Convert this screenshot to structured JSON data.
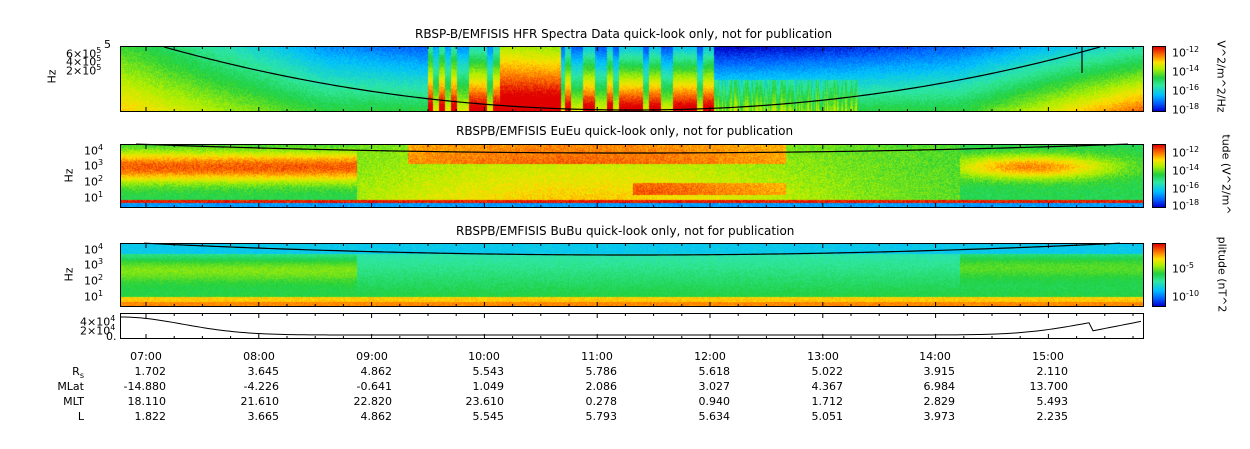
{
  "panels": [
    {
      "id": "hfr",
      "title": "RBSP-B/EMFISIS  HFR Spectra Data quick-look only, not for publication",
      "ylabel": "Hz",
      "yticks": [
        [
          "6×10",
          "5"
        ],
        [
          "4×10",
          "5"
        ],
        [
          "2×10",
          "5"
        ]
      ],
      "top_tick": "5",
      "cblabel": "V^2/m^2/Hz",
      "cbticks": [
        [
          "10",
          "-12"
        ],
        [
          "10",
          "-14"
        ],
        [
          "10",
          "-16"
        ],
        [
          "10",
          "-18"
        ]
      ]
    },
    {
      "id": "eueu",
      "title": "RBSPB/EMFISIS  EuEu quick-look only, not for publication",
      "ylabel": "Hz",
      "yticks": [
        [
          "10",
          "4"
        ],
        [
          "10",
          "3"
        ],
        [
          "10",
          "2"
        ],
        [
          "10",
          "1"
        ]
      ],
      "top_tick": "",
      "cblabel": "tude (V^2/m^",
      "cbticks": [
        [
          "10",
          "-12"
        ],
        [
          "10",
          "-14"
        ],
        [
          "10",
          "-16"
        ],
        [
          "10",
          "-18"
        ]
      ]
    },
    {
      "id": "bubu",
      "title": "RBSPB/EMFISIS  BuBu quick-look only, not for publication",
      "ylabel": "Hz",
      "yticks": [
        [
          "10",
          "4"
        ],
        [
          "10",
          "3"
        ],
        [
          "10",
          "2"
        ],
        [
          "10",
          "1"
        ]
      ],
      "top_tick": "",
      "cblabel": "plitude (nT^2",
      "cbticks": [
        [
          "10",
          "-5"
        ],
        [
          "10",
          "-10"
        ]
      ]
    }
  ],
  "line_panel": {
    "yticks": [
      [
        "4×10",
        "4"
      ],
      [
        "2×10",
        "4"
      ],
      [
        "0.",
        ""
      ]
    ]
  },
  "chart_data": {
    "type": "heatmap",
    "x_ticks": [
      "07:00",
      "08:00",
      "09:00",
      "10:00",
      "11:00",
      "12:00",
      "13:00",
      "14:00",
      "15:00"
    ],
    "ephemeris": [
      {
        "label": "R",
        "label_sub": "s",
        "values": [
          "1.702",
          "3.645",
          "4.862",
          "5.543",
          "5.786",
          "5.618",
          "5.022",
          "3.915",
          "2.110"
        ]
      },
      {
        "label": "MLat",
        "label_sub": "",
        "values": [
          "-14.880",
          "-4.226",
          "-0.641",
          "1.049",
          "2.086",
          "3.027",
          "4.367",
          "6.984",
          "13.700"
        ]
      },
      {
        "label": "MLT",
        "label_sub": "",
        "values": [
          "18.110",
          "21.610",
          "22.820",
          "23.610",
          "0.278",
          "0.940",
          "1.712",
          "2.829",
          "5.493"
        ]
      },
      {
        "label": "L",
        "label_sub": "",
        "values": [
          "1.822",
          "3.665",
          "4.862",
          "5.545",
          "5.793",
          "5.634",
          "5.051",
          "3.973",
          "2.235"
        ]
      }
    ]
  }
}
